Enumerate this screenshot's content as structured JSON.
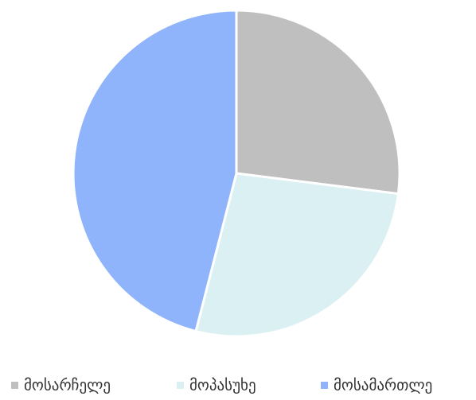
{
  "chart_data": {
    "type": "pie",
    "categories": [
      "მოსარჩელე",
      "მოპასუხე",
      "მოსამართლე"
    ],
    "values": [
      27,
      27,
      46
    ],
    "colors": [
      "#bfbfbf",
      "#daf0f3",
      "#8fb4fb"
    ],
    "legend": "bottom"
  }
}
